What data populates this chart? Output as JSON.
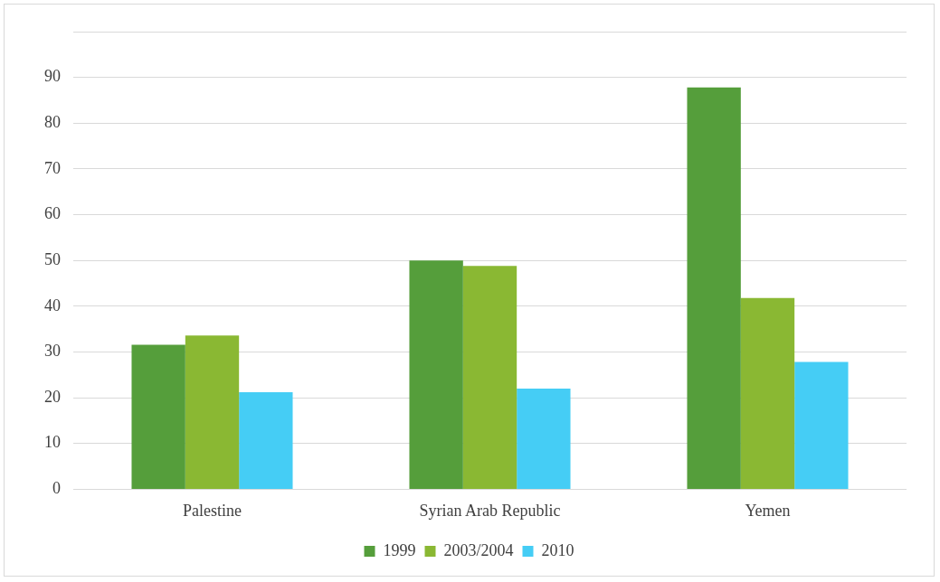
{
  "chart_data": {
    "type": "bar",
    "categories": [
      "Palestine",
      "Syrian Arab Republic",
      "Yemen"
    ],
    "series": [
      {
        "name": "1999",
        "color": "#559e3b",
        "values": [
          31.6,
          50,
          87.8
        ]
      },
      {
        "name": "2003/2004",
        "color": "#8ab833",
        "values": [
          33.6,
          48.8,
          41.8
        ]
      },
      {
        "name": "2010",
        "color": "#45cdf5",
        "values": [
          21.2,
          22,
          27.8
        ]
      }
    ],
    "ylim": [
      0,
      100
    ],
    "yticks": [
      0,
      10,
      20,
      30,
      40,
      50,
      60,
      70,
      80,
      90,
      {
        "value": 100,
        "label": null
      }
    ],
    "grid": "y",
    "legend": "bottom"
  }
}
